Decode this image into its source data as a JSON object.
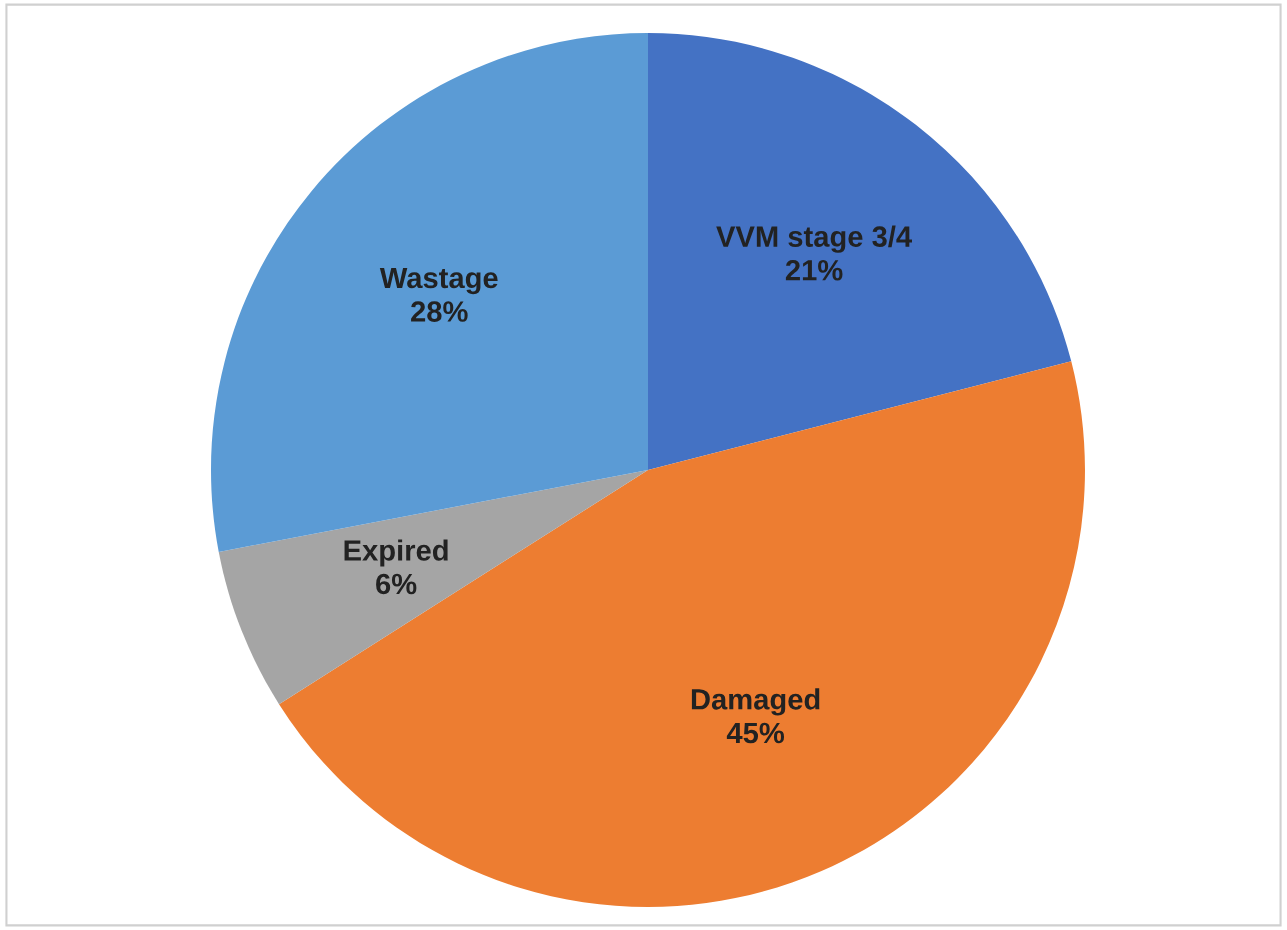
{
  "chart_data": {
    "type": "pie",
    "categories": [
      "VVM stage 3/4",
      "Damaged",
      "Expired",
      "Wastage"
    ],
    "values": [
      21,
      45,
      6,
      28
    ],
    "value_labels": [
      "21%",
      "45%",
      "6%",
      "28%"
    ],
    "colors": [
      "#4472c4",
      "#ed7d31",
      "#a5a5a5",
      "#5b9bd5"
    ]
  }
}
